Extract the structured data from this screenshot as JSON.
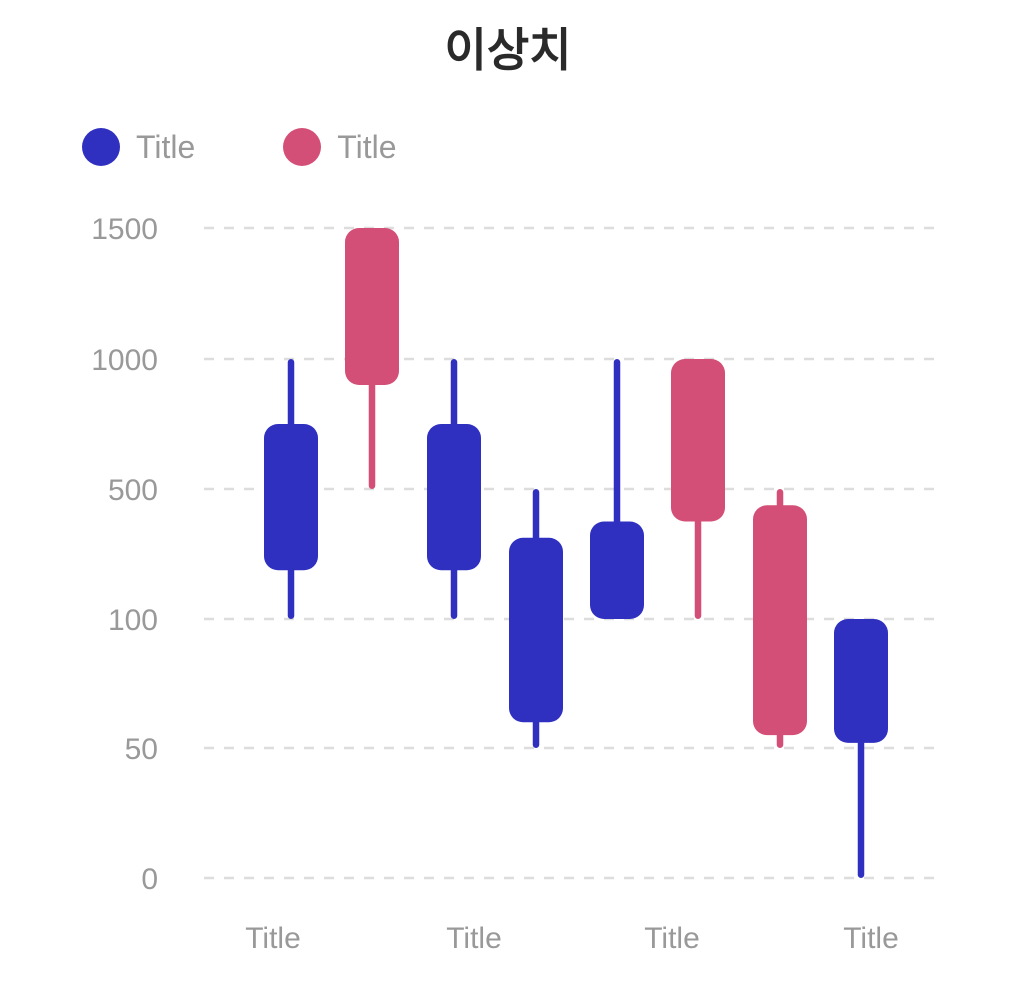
{
  "chart_data": {
    "type": "candlestick",
    "title": "이상치",
    "colors": {
      "series_a": "#3030c0",
      "series_b": "#d44f77",
      "grid": "#dddddd",
      "text": "#999999"
    },
    "y_ticks": [
      "0",
      "50",
      "100",
      "500",
      "1000",
      "1500"
    ],
    "x_tick_labels": [
      "Title",
      "Title",
      "Title",
      "Title"
    ],
    "series": [
      {
        "name": "Title",
        "color": "#3030c0"
      },
      {
        "name": "Title",
        "color": "#d44f77"
      }
    ],
    "candles": [
      {
        "series": 0,
        "low": 100,
        "q1": 250,
        "q3": 750,
        "high": 1000
      },
      {
        "series": 1,
        "low": 500,
        "q1": 900,
        "q3": 1500,
        "high": 1500
      },
      {
        "series": 0,
        "low": 100,
        "q1": 250,
        "q3": 750,
        "high": 1000
      },
      {
        "series": 0,
        "low": 50,
        "q1": 60,
        "q3": 350,
        "high": 500
      },
      {
        "series": 0,
        "low": 100,
        "q1": 100,
        "q3": 400,
        "high": 1000
      },
      {
        "series": 1,
        "low": 100,
        "q1": 400,
        "q3": 1000,
        "high": 1000
      },
      {
        "series": 1,
        "low": 50,
        "q1": 55,
        "q3": 450,
        "high": 500
      },
      {
        "series": 0,
        "low": 0,
        "q1": 52,
        "q3": 100,
        "high": 100
      }
    ],
    "y_scale": "categorical-ticks"
  }
}
